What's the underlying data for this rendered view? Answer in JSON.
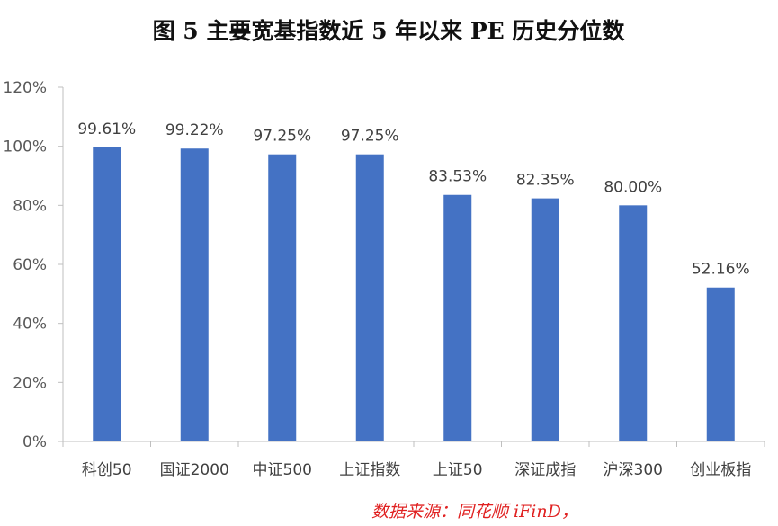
{
  "chart_data": {
    "type": "bar",
    "title": "图 5   主要宽基指数近 5 年以来 PE 历史分位数",
    "xlabel": "",
    "ylabel": "",
    "ylim": [
      0,
      120
    ],
    "grid": false,
    "legend": "none",
    "yticks": [
      "0%",
      "20%",
      "40%",
      "60%",
      "80%",
      "100%",
      "120%"
    ],
    "categories": [
      "科创50",
      "国证2000",
      "中证500",
      "上证指数",
      "上证50",
      "深证成指",
      "沪深300",
      "创业板指"
    ],
    "values": [
      99.61,
      99.22,
      97.25,
      97.25,
      83.53,
      82.35,
      80.0,
      52.16
    ],
    "value_labels": [
      "99.61%",
      "99.22%",
      "97.25%",
      "97.25%",
      "83.53%",
      "82.35%",
      "80.00%",
      "52.16%"
    ],
    "bar_color": "#4472c4"
  },
  "source": "数据来源：同花顺 iFinD，"
}
